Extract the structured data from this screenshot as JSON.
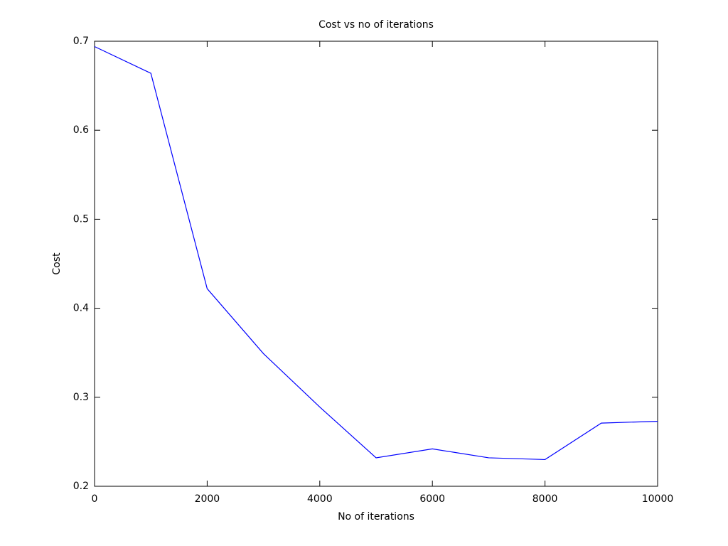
{
  "chart_data": {
    "type": "line",
    "title": "Cost vs no of iterations",
    "x_label": "No of iterations",
    "y_label": "Cost",
    "x": [
      0,
      1000,
      2000,
      3000,
      4000,
      5000,
      6000,
      7000,
      8000,
      9000,
      10000
    ],
    "series": [
      {
        "color": "#0000ff",
        "values": [
          0.694,
          0.664,
          0.422,
          0.349,
          0.289,
          0.232,
          0.242,
          0.232,
          0.23,
          0.271,
          0.273
        ]
      }
    ],
    "xlim": [
      0,
      10000
    ],
    "xticks": [
      0,
      2000,
      4000,
      6000,
      8000,
      10000
    ],
    "ylim": [
      0.2,
      0.7
    ],
    "yticks": [
      0.2,
      0.3,
      0.4,
      0.5,
      0.6,
      0.7
    ],
    "grid": false
  }
}
